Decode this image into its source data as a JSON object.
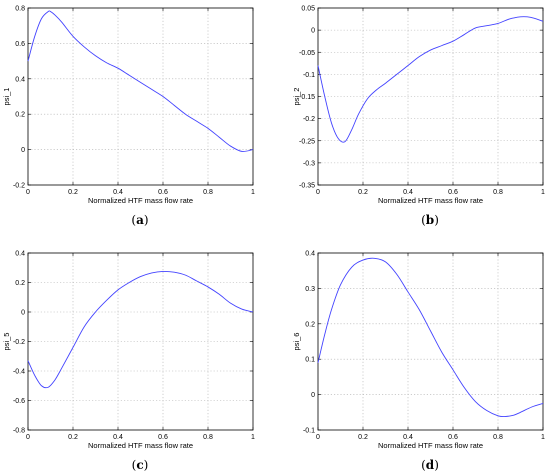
{
  "chart_data": [
    {
      "type": "line",
      "panel": "a",
      "xlabel": "Normalized HTF mass flow rate",
      "ylabel": "psi_1",
      "xlim": [
        0,
        1
      ],
      "ylim": [
        -0.2,
        0.8
      ],
      "xticks": [
        "0",
        "0.2",
        "0.4",
        "0.6",
        "0.8",
        "1"
      ],
      "yticks": [
        "-0.2",
        "0",
        "0.2",
        "0.4",
        "0.6",
        "0.8"
      ],
      "grid": true,
      "series": [
        {
          "color": "#4444ff",
          "x": [
            0,
            0.03,
            0.06,
            0.09,
            0.1,
            0.12,
            0.15,
            0.2,
            0.25,
            0.3,
            0.35,
            0.4,
            0.45,
            0.5,
            0.55,
            0.6,
            0.65,
            0.7,
            0.75,
            0.8,
            0.85,
            0.9,
            0.95,
            1.0
          ],
          "y": [
            0.5,
            0.64,
            0.74,
            0.78,
            0.78,
            0.76,
            0.72,
            0.64,
            0.58,
            0.53,
            0.49,
            0.46,
            0.42,
            0.38,
            0.34,
            0.3,
            0.25,
            0.2,
            0.16,
            0.12,
            0.07,
            0.02,
            -0.01,
            0.0
          ]
        }
      ],
      "caption": "a"
    },
    {
      "type": "line",
      "panel": "b",
      "xlabel": "Normalized HTF mass flow rate",
      "ylabel": "psi_2",
      "xlim": [
        0,
        1
      ],
      "ylim": [
        -0.35,
        0.05
      ],
      "xticks": [
        "0",
        "0.2",
        "0.4",
        "0.6",
        "0.8",
        "1"
      ],
      "yticks": [
        "-0.35",
        "-0.3",
        "-0.25",
        "-0.2",
        "-0.15",
        "-0.1",
        "-0.05",
        "0",
        "0.05"
      ],
      "grid": true,
      "series": [
        {
          "color": "#4444ff",
          "x": [
            0,
            0.03,
            0.06,
            0.09,
            0.12,
            0.15,
            0.18,
            0.22,
            0.26,
            0.3,
            0.35,
            0.4,
            0.45,
            0.5,
            0.55,
            0.6,
            0.65,
            0.7,
            0.75,
            0.8,
            0.85,
            0.9,
            0.93,
            0.96,
            1.0
          ],
          "y": [
            -0.08,
            -0.15,
            -0.21,
            -0.245,
            -0.252,
            -0.225,
            -0.19,
            -0.155,
            -0.135,
            -0.12,
            -0.1,
            -0.08,
            -0.06,
            -0.045,
            -0.035,
            -0.025,
            -0.01,
            0.005,
            0.01,
            0.015,
            0.025,
            0.03,
            0.03,
            0.027,
            0.02
          ]
        }
      ],
      "caption": "b"
    },
    {
      "type": "line",
      "panel": "c",
      "xlabel": "Normalized HTF mass flow rate",
      "ylabel": "psi_5",
      "xlim": [
        0,
        1
      ],
      "ylim": [
        -0.8,
        0.4
      ],
      "xticks": [
        "0",
        "0.2",
        "0.4",
        "0.6",
        "0.8",
        "1"
      ],
      "yticks": [
        "-0.8",
        "-0.6",
        "-0.4",
        "-0.2",
        "0",
        "0.2",
        "0.4"
      ],
      "grid": true,
      "series": [
        {
          "color": "#4444ff",
          "x": [
            0,
            0.03,
            0.06,
            0.09,
            0.12,
            0.15,
            0.2,
            0.25,
            0.3,
            0.35,
            0.4,
            0.45,
            0.5,
            0.55,
            0.6,
            0.65,
            0.7,
            0.75,
            0.8,
            0.85,
            0.9,
            0.95,
            1.0
          ],
          "y": [
            -0.33,
            -0.43,
            -0.5,
            -0.51,
            -0.46,
            -0.38,
            -0.24,
            -0.1,
            0.0,
            0.08,
            0.15,
            0.2,
            0.24,
            0.265,
            0.275,
            0.27,
            0.25,
            0.21,
            0.17,
            0.12,
            0.06,
            0.02,
            0.0
          ]
        }
      ],
      "caption": "c"
    },
    {
      "type": "line",
      "panel": "d",
      "xlabel": "Normalized HTF mass flow rate",
      "ylabel": "psi_6",
      "xlim": [
        0,
        1
      ],
      "ylim": [
        -0.1,
        0.4
      ],
      "xticks": [
        "0",
        "0.2",
        "0.4",
        "0.6",
        "0.8",
        "1"
      ],
      "yticks": [
        "-0.1",
        "0",
        "0.1",
        "0.2",
        "0.3",
        "0.4"
      ],
      "grid": true,
      "series": [
        {
          "color": "#4444ff",
          "x": [
            0,
            0.03,
            0.06,
            0.1,
            0.15,
            0.2,
            0.25,
            0.3,
            0.35,
            0.4,
            0.45,
            0.5,
            0.55,
            0.6,
            0.65,
            0.7,
            0.75,
            0.8,
            0.83,
            0.87,
            0.9,
            0.95,
            1.0
          ],
          "y": [
            0.09,
            0.17,
            0.24,
            0.31,
            0.36,
            0.38,
            0.385,
            0.375,
            0.34,
            0.29,
            0.24,
            0.18,
            0.12,
            0.07,
            0.02,
            -0.02,
            -0.045,
            -0.06,
            -0.062,
            -0.058,
            -0.05,
            -0.035,
            -0.025
          ]
        }
      ],
      "caption": "d"
    }
  ]
}
